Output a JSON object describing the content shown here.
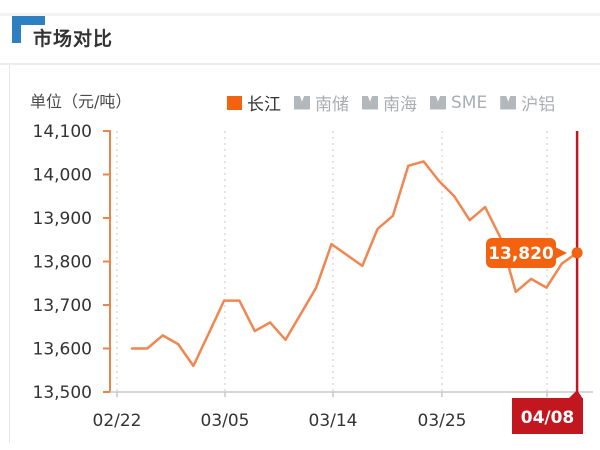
{
  "header": {
    "title": "市场对比"
  },
  "unit_label": "单位（元/吨）",
  "legend": {
    "items": [
      {
        "label": "长江",
        "active": true
      },
      {
        "label": "南储",
        "active": false
      },
      {
        "label": "南海",
        "active": false
      },
      {
        "label": "SME",
        "active": false
      },
      {
        "label": "沪铝",
        "active": false
      }
    ]
  },
  "colors": {
    "accent_blue": "#2d80c2",
    "line_orange": "#f08650",
    "bright_orange": "#f2620f",
    "highlight_red": "#c2171e",
    "legend_gray": "#b3b8bc"
  },
  "chart_data": {
    "type": "line",
    "title": "市场对比",
    "ylabel": "单位（元/吨）",
    "ylim": [
      13500,
      14100
    ],
    "ytick_step": 100,
    "ytick_labels": [
      "14,100",
      "14,000",
      "13,900",
      "13,800",
      "13,700",
      "13,600",
      "13,500"
    ],
    "xtick_labels": [
      "02/22",
      "03/05",
      "03/14",
      "03/25",
      "04/08"
    ],
    "grid": "vertical-dotted",
    "legend_position": "top",
    "series": [
      {
        "name": "长江",
        "color": "#f08650",
        "values": [
          13600,
          13600,
          13630,
          13610,
          13560,
          13635,
          13710,
          13710,
          13640,
          13660,
          13620,
          13680,
          13740,
          13840,
          13815,
          13790,
          13875,
          13905,
          14020,
          14030,
          13985,
          13950,
          13895,
          13925,
          13855,
          13730,
          13760,
          13740,
          13795,
          13820
        ]
      }
    ],
    "last_value": 13820,
    "end_label": "13,820",
    "highlighted_xtick": "04/08"
  }
}
